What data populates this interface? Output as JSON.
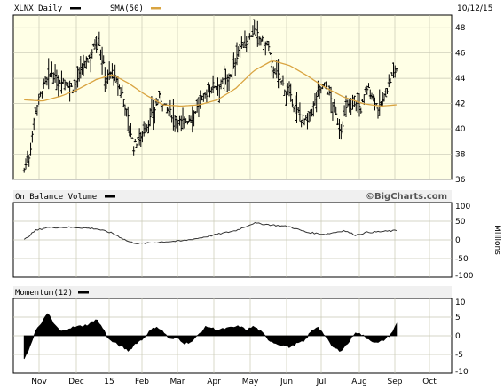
{
  "header": {
    "symbol_label": "XLNX Daily",
    "sma_label": "SMA(50)",
    "date_label": "10/12/15"
  },
  "obv_panel": {
    "title": "On Balance Volume",
    "watermark": "©BigCharts.com",
    "units_label": "Millions"
  },
  "momentum_panel": {
    "title": "Momentum(12)"
  },
  "colors": {
    "plot_background": "#ffffe6",
    "sma_line": "#d9a441",
    "price_bar": "#000000",
    "grid": "#c8c8b4"
  },
  "chart_data": [
    {
      "type": "ohlc",
      "title": "XLNX Daily",
      "series": [
        {
          "name": "XLNX Daily",
          "kind": "price"
        },
        {
          "name": "SMA(50)",
          "kind": "moving-average"
        }
      ],
      "x_ticks": [
        "Nov",
        "Dec",
        "15",
        "Feb",
        "Mar",
        "Apr",
        "May",
        "Jun",
        "Jul",
        "Aug",
        "Sep",
        "Oct"
      ],
      "y_ticks": [
        36,
        38,
        40,
        42,
        44,
        46,
        48
      ],
      "ylim": [
        36,
        49
      ],
      "price_close_points": [
        [
          0,
          36.8
        ],
        [
          0.15,
          38
        ],
        [
          0.3,
          41.5
        ],
        [
          0.5,
          43.2
        ],
        [
          0.75,
          44.5
        ],
        [
          0.9,
          43.5
        ],
        [
          1.0,
          44.0
        ],
        [
          1.3,
          43.2
        ],
        [
          1.6,
          44.8
        ],
        [
          1.85,
          45.9
        ],
        [
          2.0,
          47.0
        ],
        [
          2.1,
          46.8
        ],
        [
          2.3,
          44.0
        ],
        [
          2.5,
          44.5
        ],
        [
          2.65,
          43.5
        ],
        [
          2.8,
          42.8
        ],
        [
          3.0,
          40.5
        ],
        [
          3.15,
          38.5
        ],
        [
          3.3,
          39.3
        ],
        [
          3.5,
          40.0
        ],
        [
          3.75,
          41.5
        ],
        [
          3.9,
          42.5
        ],
        [
          4.1,
          41.5
        ],
        [
          4.3,
          41.0
        ],
        [
          4.5,
          40.5
        ],
        [
          4.75,
          40.8
        ],
        [
          4.9,
          41.5
        ],
        [
          5.0,
          42.0
        ],
        [
          5.2,
          42.8
        ],
        [
          5.35,
          43.4
        ],
        [
          5.6,
          43.6
        ],
        [
          5.8,
          44.0
        ],
        [
          5.95,
          45.0
        ],
        [
          6.1,
          46.5
        ],
        [
          6.3,
          46.8
        ],
        [
          6.5,
          47.8
        ],
        [
          6.7,
          47.0
        ],
        [
          6.9,
          46.5
        ],
        [
          7.0,
          45.0
        ],
        [
          7.2,
          44.0
        ],
        [
          7.4,
          43.0
        ],
        [
          7.6,
          42.0
        ],
        [
          7.8,
          41.0
        ],
        [
          8.0,
          40.5
        ],
        [
          8.15,
          41.5
        ],
        [
          8.3,
          43.0
        ],
        [
          8.5,
          43.5
        ],
        [
          8.7,
          42.0
        ],
        [
          8.9,
          39.8
        ],
        [
          9.05,
          41.5
        ],
        [
          9.25,
          42.5
        ],
        [
          9.45,
          41.5
        ],
        [
          9.6,
          43.3
        ],
        [
          9.8,
          42.5
        ],
        [
          9.95,
          41.5
        ],
        [
          10.1,
          42.5
        ],
        [
          10.3,
          44.0
        ],
        [
          10.45,
          44.8
        ]
      ],
      "sma_points": [
        [
          0,
          42.3
        ],
        [
          0.5,
          42.2
        ],
        [
          1.0,
          42.6
        ],
        [
          1.5,
          43.2
        ],
        [
          2.0,
          43.9
        ],
        [
          2.5,
          44.3
        ],
        [
          3.0,
          43.6
        ],
        [
          3.5,
          42.7
        ],
        [
          4.0,
          41.9
        ],
        [
          4.5,
          41.8
        ],
        [
          5.0,
          41.9
        ],
        [
          5.5,
          42.3
        ],
        [
          6.0,
          43.2
        ],
        [
          6.5,
          44.6
        ],
        [
          7.0,
          45.4
        ],
        [
          7.5,
          45.0
        ],
        [
          8.0,
          44.2
        ],
        [
          8.5,
          43.3
        ],
        [
          9.0,
          42.5
        ],
        [
          9.5,
          42.0
        ],
        [
          10.0,
          41.8
        ],
        [
          10.45,
          41.9
        ]
      ]
    },
    {
      "type": "line",
      "title": "On Balance Volume",
      "ylabel": "Millions",
      "y_ticks": [
        100,
        50,
        0,
        -50,
        -100
      ],
      "ylim": [
        -100,
        100
      ],
      "points": [
        [
          0,
          0
        ],
        [
          0.3,
          25
        ],
        [
          0.6,
          33
        ],
        [
          1.0,
          34
        ],
        [
          1.5,
          33
        ],
        [
          2.0,
          30
        ],
        [
          2.5,
          18
        ],
        [
          3.0,
          -5
        ],
        [
          3.3,
          -10
        ],
        [
          3.7,
          -8
        ],
        [
          4.0,
          -5
        ],
        [
          4.5,
          -3
        ],
        [
          5.0,
          5
        ],
        [
          5.5,
          15
        ],
        [
          6.0,
          25
        ],
        [
          6.5,
          45
        ],
        [
          7.0,
          40
        ],
        [
          7.5,
          35
        ],
        [
          8.0,
          20
        ],
        [
          8.5,
          15
        ],
        [
          9.0,
          25
        ],
        [
          9.3,
          13
        ],
        [
          9.6,
          20
        ],
        [
          10.0,
          22
        ],
        [
          10.45,
          25
        ]
      ]
    },
    {
      "type": "area",
      "title": "Momentum(12)",
      "y_ticks": [
        10,
        5,
        0,
        -5,
        -10
      ],
      "ylim": [
        -10,
        10
      ],
      "points": [
        [
          0,
          -6
        ],
        [
          0.15,
          -3
        ],
        [
          0.3,
          1
        ],
        [
          0.5,
          4
        ],
        [
          0.65,
          6
        ],
        [
          0.8,
          3
        ],
        [
          1.0,
          1
        ],
        [
          1.2,
          2
        ],
        [
          1.5,
          2.5
        ],
        [
          1.8,
          3
        ],
        [
          2.0,
          4.5
        ],
        [
          2.2,
          2
        ],
        [
          2.4,
          -1
        ],
        [
          2.6,
          -2
        ],
        [
          2.8,
          -3
        ],
        [
          3.0,
          -4
        ],
        [
          3.2,
          -2
        ],
        [
          3.4,
          -1
        ],
        [
          3.6,
          1
        ],
        [
          3.8,
          2.5
        ],
        [
          4.0,
          1
        ],
        [
          4.2,
          -1
        ],
        [
          4.4,
          -0.5
        ],
        [
          4.6,
          -2
        ],
        [
          4.8,
          -1.5
        ],
        [
          5.0,
          0.5
        ],
        [
          5.2,
          2.5
        ],
        [
          5.5,
          1.5
        ],
        [
          5.8,
          2
        ],
        [
          6.1,
          2.5
        ],
        [
          6.3,
          1.5
        ],
        [
          6.5,
          2.5
        ],
        [
          6.7,
          1
        ],
        [
          6.9,
          -1
        ],
        [
          7.1,
          -2
        ],
        [
          7.3,
          -2.5
        ],
        [
          7.5,
          -3
        ],
        [
          7.7,
          -2
        ],
        [
          7.9,
          -1.5
        ],
        [
          8.1,
          1
        ],
        [
          8.3,
          2.5
        ],
        [
          8.5,
          0
        ],
        [
          8.7,
          -3
        ],
        [
          8.9,
          -4
        ],
        [
          9.1,
          -2
        ],
        [
          9.3,
          1
        ],
        [
          9.5,
          0
        ],
        [
          9.7,
          -1
        ],
        [
          9.9,
          -2
        ],
        [
          10.1,
          -1
        ],
        [
          10.3,
          0.5
        ],
        [
          10.45,
          3
        ]
      ]
    }
  ]
}
